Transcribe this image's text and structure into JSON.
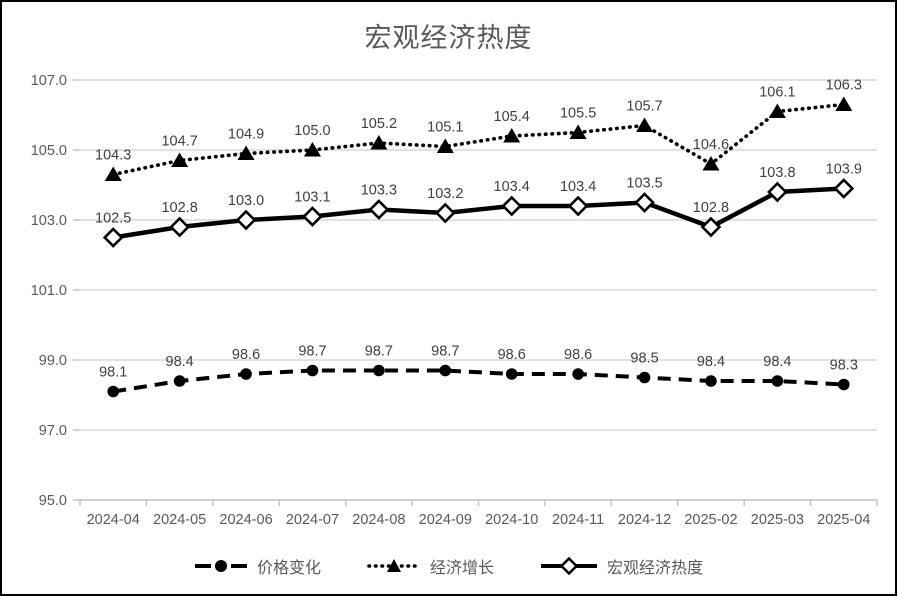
{
  "title": "宏观经济热度",
  "chart_data": {
    "type": "line",
    "title": "宏观经济热度",
    "categories": [
      "2024-04",
      "2024-05",
      "2024-06",
      "2024-07",
      "2024-08",
      "2024-09",
      "2024-10",
      "2024-11",
      "2024-12",
      "2025-02",
      "2025-03",
      "2025-04"
    ],
    "series": [
      {
        "name": "价格变化",
        "marker": "filled-circle",
        "line_style": "dashed",
        "values": [
          98.1,
          98.4,
          98.6,
          98.7,
          98.7,
          98.7,
          98.6,
          98.6,
          98.5,
          98.4,
          98.4,
          98.3
        ]
      },
      {
        "name": "经济增长",
        "marker": "filled-triangle",
        "line_style": "dotted",
        "values": [
          104.3,
          104.7,
          104.9,
          105.0,
          105.2,
          105.1,
          105.4,
          105.5,
          105.7,
          104.6,
          106.1,
          106.3
        ]
      },
      {
        "name": "宏观经济热度",
        "marker": "open-diamond",
        "line_style": "solid",
        "values": [
          102.5,
          102.8,
          103.0,
          103.1,
          103.3,
          103.2,
          103.4,
          103.4,
          103.5,
          102.8,
          103.8,
          103.9
        ]
      }
    ],
    "y_axis": {
      "min": 95.0,
      "max": 107.0,
      "step": 2.0,
      "tick_labels": [
        "95.0",
        "97.0",
        "99.0",
        "101.0",
        "103.0",
        "105.0",
        "107.0"
      ]
    },
    "x_axis": {
      "tick_labels": [
        "2024-04",
        "2024-05",
        "2024-06",
        "2024-07",
        "2024-08",
        "2024-09",
        "2024-10",
        "2024-11",
        "2024-12",
        "2025-02",
        "2025-03",
        "2025-04"
      ]
    },
    "data_labels_shown": true,
    "grid": true,
    "legend_position": "bottom",
    "colors": {
      "series": "#000000",
      "gridline": "#d9d9d9",
      "axis_line": "#bfbfbf",
      "axis_text": "#595959",
      "data_label": "#404040",
      "title_text": "#595959",
      "background": "#ffffff"
    }
  }
}
